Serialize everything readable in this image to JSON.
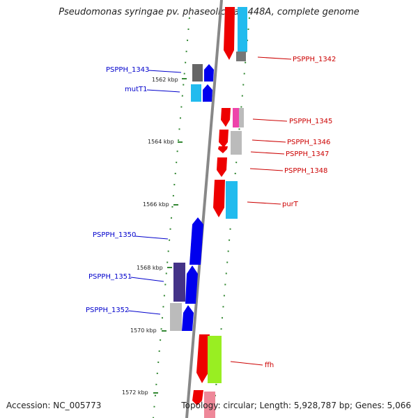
{
  "title": "Pseudomonas syringae pv. phaseolicola 1448A, complete genome",
  "footer": {
    "accession": "Accession: NC_005773",
    "topology": "Topology: circular; Length: 5,928,787 bp; Genes: 5,066"
  },
  "ticks": [
    "1562 kbp",
    "1564 kbp",
    "1566 kbp",
    "1568 kbp",
    "1570 kbp",
    "1572 kbp"
  ],
  "genes_left": [
    "PSPPH_1343",
    "mutT1",
    "PSPPH_1350",
    "PSPPH_1351",
    "PSPPH_1352"
  ],
  "genes_right": [
    "PSPPH_1342",
    "PSPPH_1345",
    "PSPPH_1346",
    "PSPPH_1347",
    "PSPPH_1348",
    "purT",
    "ffh"
  ],
  "colors": {
    "left_label": "#0000cc",
    "right_label": "#cc0000",
    "forward_gene": "#0000ee",
    "reverse_gene": "#ee0000",
    "backbone": "#888888",
    "ticks": "#338833"
  }
}
